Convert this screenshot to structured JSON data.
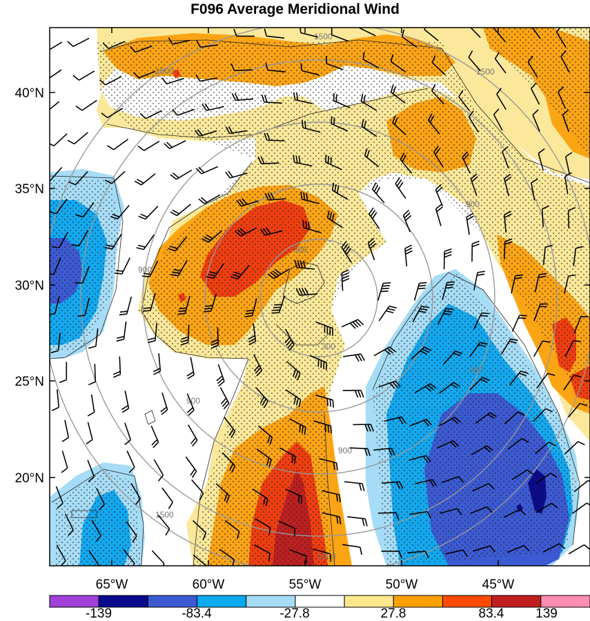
{
  "title": "F096 Average Meridional Wind",
  "lat_labels": [
    "40°N",
    "35°N",
    "30°N",
    "25°N",
    "20°N"
  ],
  "lon_labels": [
    "65°W",
    "60°W",
    "55°W",
    "50°W",
    "45°W"
  ],
  "colorbar": {
    "labels": [
      "-139",
      "-83.4",
      "-27.8",
      "27.8",
      "83.4",
      "139"
    ],
    "colors": [
      "#a040d8",
      "#0a0a8c",
      "#3c5ad2",
      "#0aaaf0",
      "#a6dcf6",
      "#ffffff",
      "#ffe88c",
      "#ffa000",
      "#ff4a00",
      "#c01e1e",
      "#ff8cb4"
    ]
  },
  "contour_labels": [
    "1500",
    "1500",
    "1500",
    "900",
    "900",
    "900",
    "900",
    "900",
    "300",
    "300",
    "1500",
    "1500"
  ],
  "colors": {
    "positive_light": "#fbe89a",
    "positive_mid": "#fba414",
    "positive_strong": "#ef3e10",
    "positive_max": "#bc2020",
    "negative_light": "#a6dcf6",
    "negative_mid": "#12a8ef",
    "negative_strong": "#3c5ad2",
    "negative_max": "#0a0a8c",
    "range_ring": "#999999"
  }
}
